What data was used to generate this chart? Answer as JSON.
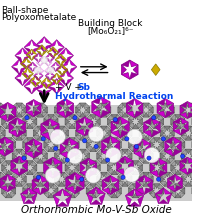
{
  "top_left_label_line1": "Ball-shape",
  "top_left_label_line2": "Polyoxometalate",
  "top_right_label_line1": "Building Block",
  "top_right_label_line2": "[Mo₆O₂₁]⁶⁻",
  "arrow_label_v": "+ V + ",
  "arrow_label_sb": "Sb",
  "arrow_label_reaction": "Hydrothermal Reaction",
  "bottom_label": "Orthorhombic Mo-V-Sb Oxide",
  "bg_color": "#ffffff",
  "magenta": "#cc00cc",
  "magenta_dark": "#880088",
  "magenta_light": "#ee44ee",
  "yellow": "#ccaa00",
  "yellow_dark": "#887700",
  "gray_dark": "#444444",
  "gray_mid": "#888888",
  "gray_light": "#bbbbbb",
  "blue_text": "#0044ee",
  "black_text": "#000000",
  "blue_dot": "#2244ff",
  "white": "#ffffff",
  "crystal_bg": "#d0d0d0",
  "figsize": [
    2.0,
    2.22
  ],
  "dpi": 100
}
